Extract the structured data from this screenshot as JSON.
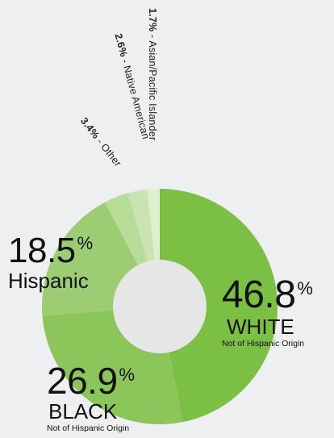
{
  "chart_data": {
    "type": "pie",
    "subtype": "donut",
    "categories": [
      "WHITE",
      "BLACK",
      "Hispanic",
      "Other",
      "Native American",
      "Asian/Pacific Islander"
    ],
    "values": [
      46.8,
      26.9,
      18.5,
      3.4,
      2.6,
      1.7
    ],
    "value_labels": [
      "46.8",
      "26.9",
      "18.5",
      "3.4%",
      "2.6%",
      "1.7%"
    ],
    "subtitles": [
      "Not of Hispanic Origin",
      "Not of Hispanic Origin",
      "",
      "",
      "",
      ""
    ],
    "colors": [
      "#7bbf44",
      "#8cc65a",
      "#9ccd72",
      "#b7dc98",
      "#c9e4b1",
      "#ddefcc"
    ],
    "center_color": "#e6e6e6",
    "percent_symbol": "%",
    "label_separator": " - "
  }
}
